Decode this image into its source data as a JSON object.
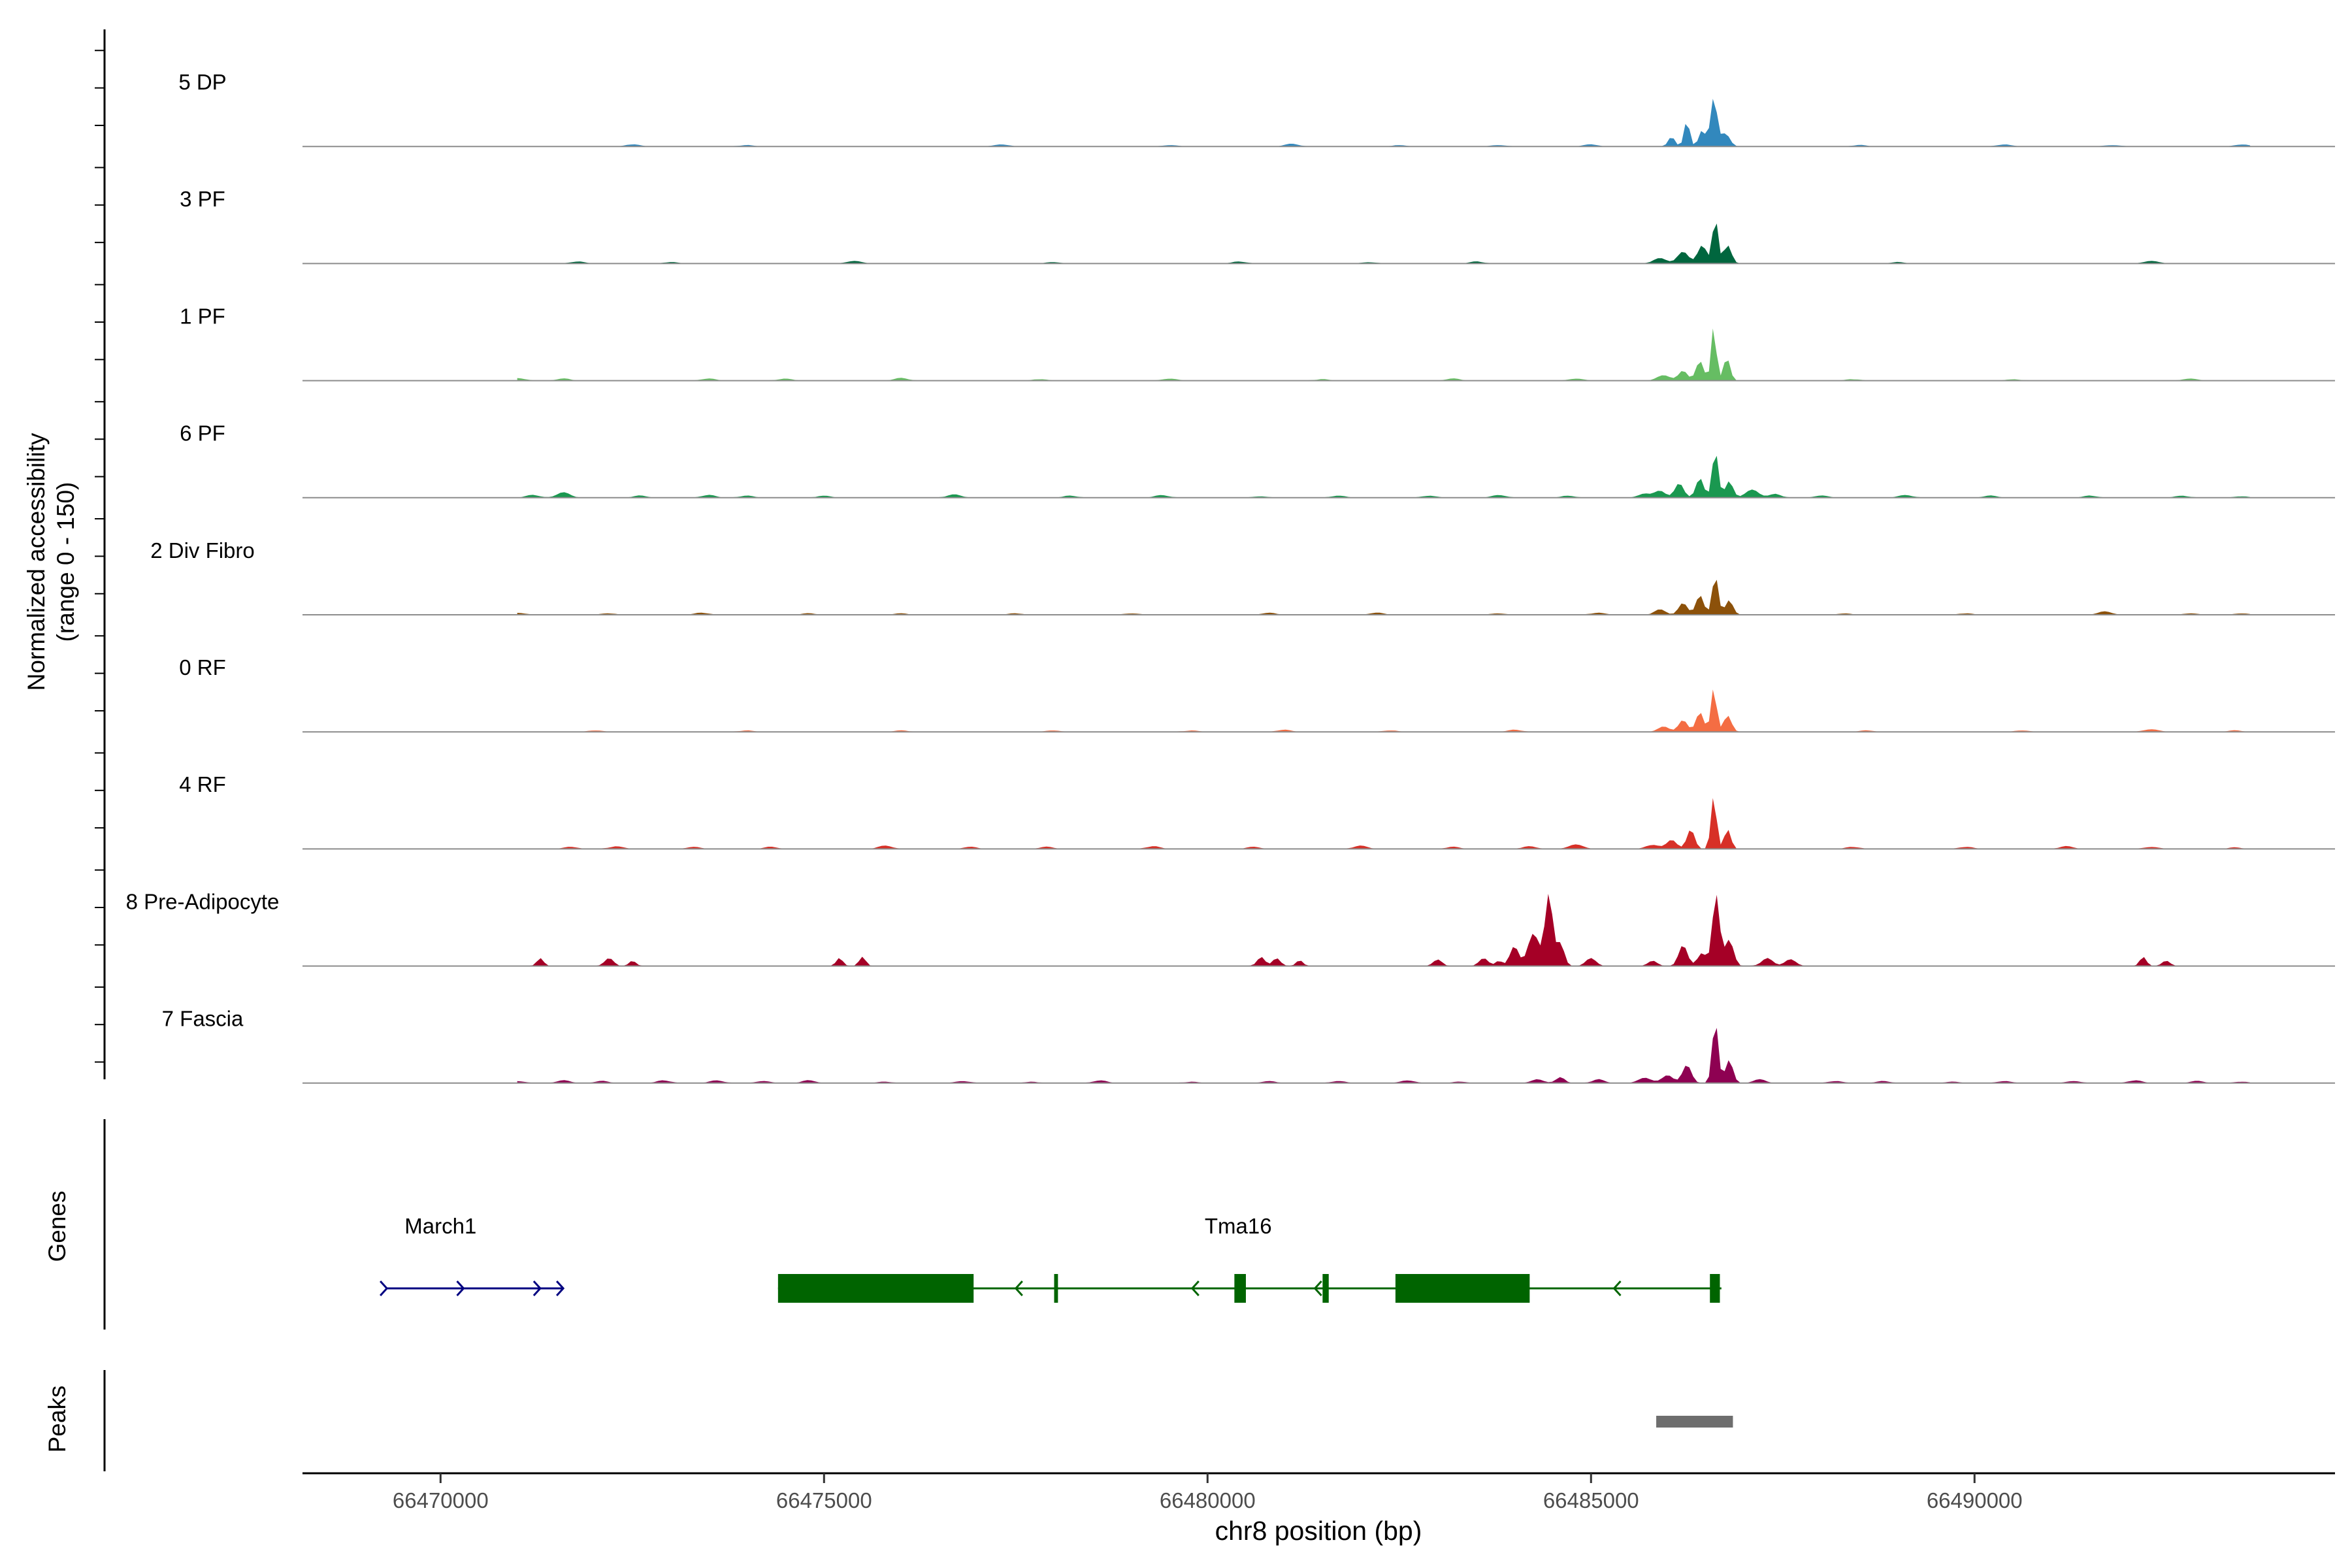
{
  "chart_data": {
    "type": "area",
    "y_axis_label_line1": "Normalized accessibility",
    "y_axis_label_line2": "(range 0 - 150)",
    "ylim": [
      0,
      150
    ],
    "x_axis_label": "chr8 position (bp)",
    "xlim": [
      66468200,
      66494700
    ],
    "x_ticks": [
      66470000,
      66475000,
      66480000,
      66485000,
      66490000
    ],
    "x_tick_labels": [
      "66470000",
      "66475000",
      "66480000",
      "66485000",
      "66490000"
    ],
    "genes_label": "Genes",
    "peaks_label": "Peaks",
    "series": [
      {
        "name": "5 DP",
        "color": "#3288bd",
        "peaks": [
          [
            66486050,
            15,
            60
          ],
          [
            66486250,
            40,
            50
          ],
          [
            66486450,
            25,
            60
          ],
          [
            66486600,
            75,
            60
          ],
          [
            66486750,
            20,
            80
          ]
        ],
        "minor": [
          [
            66469400,
            3
          ],
          [
            66472500,
            3
          ],
          [
            66474000,
            2
          ],
          [
            66477300,
            3
          ],
          [
            66479500,
            2
          ],
          [
            66481100,
            4
          ],
          [
            66482500,
            2
          ],
          [
            66483800,
            2
          ],
          [
            66485000,
            3
          ],
          [
            66488500,
            2
          ],
          [
            66490400,
            3
          ],
          [
            66491800,
            2
          ],
          [
            66493500,
            3
          ]
        ]
      },
      {
        "name": "3 PF",
        "color": "#00663e",
        "peaks": [
          [
            66485900,
            8,
            120
          ],
          [
            66486200,
            18,
            100
          ],
          [
            66486450,
            28,
            80
          ],
          [
            66486620,
            70,
            50
          ],
          [
            66486780,
            28,
            70
          ]
        ],
        "minor": [
          [
            66470000,
            2
          ],
          [
            66471800,
            3
          ],
          [
            66473000,
            2
          ],
          [
            66475400,
            4
          ],
          [
            66478000,
            2
          ],
          [
            66480400,
            3
          ],
          [
            66482100,
            2
          ],
          [
            66483500,
            3
          ],
          [
            66489000,
            2
          ],
          [
            66492300,
            4
          ]
        ]
      },
      {
        "name": "1 PF",
        "color": "#66bd63",
        "peaks": [
          [
            66485950,
            8,
            120
          ],
          [
            66486200,
            15,
            80
          ],
          [
            66486420,
            30,
            70
          ],
          [
            66486600,
            85,
            45
          ],
          [
            66486770,
            35,
            60
          ]
        ],
        "minor": [
          [
            66469800,
            3
          ],
          [
            66471000,
            4
          ],
          [
            66471600,
            3
          ],
          [
            66473500,
            3
          ],
          [
            66474500,
            3
          ],
          [
            66476000,
            4
          ],
          [
            66477800,
            2
          ],
          [
            66479500,
            3
          ],
          [
            66481500,
            2
          ],
          [
            66483200,
            3
          ],
          [
            66484800,
            3
          ],
          [
            66488400,
            2
          ],
          [
            66490500,
            2
          ],
          [
            66492800,
            3
          ]
        ]
      },
      {
        "name": "6 PF",
        "color": "#1a9850",
        "peaks": [
          [
            66485700,
            6,
            120
          ],
          [
            66485900,
            10,
            100
          ],
          [
            66486150,
            22,
            80
          ],
          [
            66486420,
            30,
            70
          ],
          [
            66486620,
            72,
            55
          ],
          [
            66486800,
            25,
            70
          ],
          [
            66487100,
            12,
            120
          ],
          [
            66487400,
            6,
            100
          ]
        ],
        "minor": [
          [
            66470000,
            2
          ],
          [
            66471200,
            4
          ],
          [
            66471600,
            8
          ],
          [
            66472600,
            3
          ],
          [
            66473500,
            4
          ],
          [
            66474000,
            3
          ],
          [
            66475000,
            3
          ],
          [
            66476700,
            5
          ],
          [
            66478200,
            3
          ],
          [
            66479400,
            4
          ],
          [
            66480700,
            2
          ],
          [
            66481700,
            3
          ],
          [
            66482900,
            3
          ],
          [
            66483800,
            4
          ],
          [
            66484700,
            3
          ],
          [
            66488000,
            3
          ],
          [
            66489100,
            4
          ],
          [
            66490200,
            3
          ],
          [
            66491500,
            3
          ],
          [
            66492700,
            3
          ],
          [
            66493500,
            2
          ]
        ]
      },
      {
        "name": "2 Div Fibro",
        "color": "#8c510a",
        "peaks": [
          [
            66485900,
            8,
            100
          ],
          [
            66486200,
            18,
            80
          ],
          [
            66486420,
            30,
            70
          ],
          [
            66486620,
            60,
            55
          ],
          [
            66486800,
            22,
            70
          ]
        ],
        "minor": [
          [
            66469800,
            2
          ],
          [
            66471000,
            3
          ],
          [
            66472200,
            2
          ],
          [
            66473400,
            3
          ],
          [
            66474800,
            2
          ],
          [
            66476000,
            2
          ],
          [
            66477500,
            2
          ],
          [
            66479000,
            2
          ],
          [
            66480800,
            3
          ],
          [
            66482200,
            3
          ],
          [
            66483800,
            2
          ],
          [
            66485100,
            3
          ],
          [
            66488300,
            2
          ],
          [
            66489900,
            2
          ],
          [
            66491700,
            5
          ],
          [
            66492800,
            2
          ],
          [
            66493500,
            2
          ]
        ]
      },
      {
        "name": "0 RF",
        "color": "#f46d43",
        "peaks": [
          [
            66485950,
            8,
            100
          ],
          [
            66486200,
            18,
            80
          ],
          [
            66486420,
            30,
            70
          ],
          [
            66486600,
            68,
            50
          ],
          [
            66486780,
            25,
            70
          ]
        ],
        "minor": [
          [
            66469800,
            2
          ],
          [
            66472000,
            2
          ],
          [
            66474000,
            2
          ],
          [
            66476000,
            2
          ],
          [
            66478000,
            2
          ],
          [
            66479800,
            2
          ],
          [
            66481000,
            3
          ],
          [
            66482400,
            2
          ],
          [
            66484000,
            3
          ],
          [
            66488600,
            2
          ],
          [
            66490600,
            2
          ],
          [
            66492300,
            4
          ],
          [
            66493400,
            2
          ]
        ]
      },
      {
        "name": "4 RF",
        "color": "#d73027",
        "peaks": [
          [
            66485800,
            6,
            120
          ],
          [
            66486050,
            14,
            90
          ],
          [
            66486300,
            30,
            70
          ],
          [
            66486600,
            82,
            50
          ],
          [
            66486780,
            30,
            60
          ]
        ],
        "minor": [
          [
            66469900,
            3
          ],
          [
            66470700,
            4
          ],
          [
            66471700,
            3
          ],
          [
            66472300,
            4
          ],
          [
            66473300,
            3
          ],
          [
            66474300,
            3
          ],
          [
            66475800,
            5
          ],
          [
            66476900,
            3
          ],
          [
            66477900,
            3
          ],
          [
            66479300,
            4
          ],
          [
            66480600,
            3
          ],
          [
            66482000,
            5
          ],
          [
            66483200,
            3
          ],
          [
            66484200,
            4
          ],
          [
            66484800,
            7
          ],
          [
            66488400,
            3
          ],
          [
            66489900,
            3
          ],
          [
            66491200,
            4
          ],
          [
            66492300,
            3
          ],
          [
            66493400,
            2
          ]
        ]
      },
      {
        "name": "8 Pre-Adipocyte",
        "color": "#a50026",
        "peaks": [
          [
            66470700,
            10,
            60
          ],
          [
            66471300,
            12,
            60
          ],
          [
            66472200,
            12,
            80
          ],
          [
            66472500,
            8,
            60
          ],
          [
            66475200,
            12,
            60
          ],
          [
            66475500,
            14,
            60
          ],
          [
            66480700,
            14,
            70
          ],
          [
            66480900,
            12,
            70
          ],
          [
            66481200,
            9,
            60
          ],
          [
            66483000,
            10,
            80
          ],
          [
            66483600,
            12,
            80
          ],
          [
            66483800,
            8,
            60
          ],
          [
            66484000,
            30,
            80
          ],
          [
            66484250,
            50,
            100
          ],
          [
            66484450,
            110,
            70
          ],
          [
            66484600,
            35,
            70
          ],
          [
            66485000,
            12,
            90
          ],
          [
            66485800,
            8,
            80
          ],
          [
            66486200,
            32,
            80
          ],
          [
            66486450,
            20,
            80
          ],
          [
            66486630,
            110,
            65
          ],
          [
            66486800,
            40,
            80
          ],
          [
            66487300,
            12,
            100
          ],
          [
            66487600,
            10,
            100
          ],
          [
            66492200,
            14,
            60
          ],
          [
            66492500,
            8,
            70
          ]
        ],
        "minor": []
      },
      {
        "name": "7 Fascia",
        "color": "#8e0152",
        "peaks": [
          [
            66484300,
            6,
            100
          ],
          [
            66484600,
            9,
            80
          ],
          [
            66485100,
            6,
            100
          ],
          [
            66485700,
            8,
            120
          ],
          [
            66486000,
            12,
            100
          ],
          [
            66486250,
            28,
            80
          ],
          [
            66486620,
            95,
            55
          ],
          [
            66486800,
            35,
            70
          ],
          [
            66487200,
            6,
            100
          ]
        ],
        "minor": [
          [
            66469900,
            3
          ],
          [
            66470400,
            2
          ],
          [
            66471000,
            3
          ],
          [
            66471600,
            4
          ],
          [
            66472100,
            3
          ],
          [
            66472900,
            4
          ],
          [
            66473600,
            4
          ],
          [
            66474200,
            3
          ],
          [
            66474800,
            4
          ],
          [
            66475800,
            2
          ],
          [
            66476800,
            3
          ],
          [
            66477700,
            2
          ],
          [
            66478600,
            4
          ],
          [
            66479800,
            2
          ],
          [
            66480800,
            3
          ],
          [
            66481700,
            3
          ],
          [
            66482600,
            4
          ],
          [
            66483300,
            2
          ],
          [
            66488200,
            3
          ],
          [
            66488800,
            3
          ],
          [
            66489700,
            2
          ],
          [
            66490400,
            3
          ],
          [
            66491300,
            3
          ],
          [
            66492100,
            4
          ],
          [
            66492900,
            3
          ],
          [
            66493500,
            2
          ]
        ]
      }
    ],
    "genes": [
      {
        "name": "March1",
        "strand": "+",
        "color": "#000080",
        "start": 66469300,
        "end": 66471600,
        "label_x": 66470000,
        "exons": [],
        "arrows": [
          66469300,
          66470300,
          66471300,
          66471600
        ]
      },
      {
        "name": "Tma16",
        "strand": "-",
        "color": "#006400",
        "start": 66474400,
        "end": 66486700,
        "label_x": 66480400,
        "exons": [
          [
            66474400,
            66476950
          ],
          [
            66478000,
            66478050
          ],
          [
            66480350,
            66480500
          ],
          [
            66481500,
            66481580
          ],
          [
            66482450,
            66484200
          ],
          [
            66486550,
            66486680
          ]
        ],
        "arrows": [
          66477500,
          66479800,
          66481400,
          66485300
        ]
      }
    ],
    "peaks_track": [
      [
        66485850,
        66486850
      ]
    ]
  }
}
